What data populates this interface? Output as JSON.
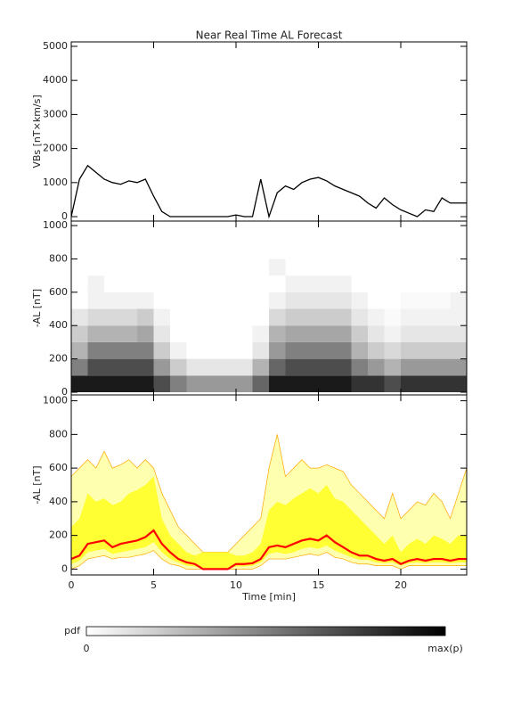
{
  "chart_data": [
    {
      "type": "line",
      "title": "Near Real Time AL Forecast",
      "ylabel": "VBs [nT×km/s]",
      "x": [
        0,
        0.5,
        1,
        1.5,
        2,
        2.5,
        3,
        3.5,
        4,
        4.5,
        5,
        5.5,
        6,
        6.5,
        7,
        7.5,
        8,
        8.5,
        9,
        9.5,
        10,
        10.5,
        11,
        11.5,
        12,
        12.5,
        13,
        13.5,
        14,
        14.5,
        15,
        15.5,
        16,
        16.5,
        17,
        17.5,
        18,
        18.5,
        19,
        19.5,
        20,
        20.5,
        21,
        21.5,
        22,
        22.5,
        23,
        23.5,
        24
      ],
      "values": [
        0,
        1100,
        1500,
        1300,
        1100,
        1000,
        950,
        1050,
        1000,
        1100,
        600,
        150,
        0,
        0,
        0,
        0,
        0,
        0,
        0,
        0,
        50,
        0,
        0,
        1100,
        0,
        700,
        900,
        800,
        1000,
        1100,
        1150,
        1050,
        900,
        800,
        700,
        600,
        400,
        250,
        550,
        350,
        200,
        100,
        0,
        200,
        150,
        550,
        400,
        400,
        400
      ],
      "color": "#000000",
      "xlim": [
        0,
        24
      ],
      "xticks": [
        0,
        5,
        10,
        15,
        20
      ],
      "xtick_labels": false,
      "ylim": [
        -130,
        5130
      ],
      "yticks": [
        0,
        1000,
        2000,
        3000,
        4000,
        5000
      ]
    },
    {
      "type": "heatmap",
      "ylabel": "-AL [nT]",
      "x_bins": [
        0,
        1,
        2,
        3,
        4,
        5,
        6,
        7,
        8,
        9,
        10,
        11,
        12,
        13,
        14,
        15,
        16,
        17,
        18,
        19,
        20,
        21,
        22,
        23,
        24
      ],
      "y_bins": [
        0,
        100,
        200,
        300,
        400,
        500,
        600,
        700,
        800
      ],
      "values": [
        [
          0.9,
          0.5,
          0.3,
          0.2,
          0.1,
          0,
          0,
          0
        ],
        [
          0.9,
          0.7,
          0.5,
          0.3,
          0.15,
          0.05,
          0.05,
          0
        ],
        [
          0.9,
          0.7,
          0.5,
          0.3,
          0.15,
          0.05,
          0,
          0
        ],
        [
          0.9,
          0.7,
          0.5,
          0.3,
          0.15,
          0.05,
          0,
          0
        ],
        [
          0.9,
          0.7,
          0.5,
          0.35,
          0.2,
          0.05,
          0,
          0
        ],
        [
          0.7,
          0.4,
          0.2,
          0.1,
          0.05,
          0,
          0,
          0
        ],
        [
          0.5,
          0.2,
          0.05,
          0,
          0,
          0,
          0,
          0
        ],
        [
          0.4,
          0.1,
          0,
          0,
          0,
          0,
          0,
          0
        ],
        [
          0.4,
          0.1,
          0,
          0,
          0,
          0,
          0,
          0
        ],
        [
          0.4,
          0.1,
          0,
          0,
          0,
          0,
          0,
          0
        ],
        [
          0.4,
          0.1,
          0,
          0,
          0,
          0,
          0,
          0
        ],
        [
          0.6,
          0.3,
          0.1,
          0.05,
          0,
          0,
          0,
          0
        ],
        [
          0.9,
          0.6,
          0.4,
          0.3,
          0.15,
          0.05,
          0,
          0.05
        ],
        [
          0.9,
          0.7,
          0.5,
          0.35,
          0.2,
          0.1,
          0.05,
          0
        ],
        [
          0.9,
          0.7,
          0.5,
          0.35,
          0.2,
          0.1,
          0.05,
          0
        ],
        [
          0.9,
          0.7,
          0.5,
          0.35,
          0.2,
          0.1,
          0.05,
          0
        ],
        [
          0.9,
          0.7,
          0.5,
          0.35,
          0.2,
          0.1,
          0.05,
          0
        ],
        [
          0.8,
          0.5,
          0.3,
          0.2,
          0.1,
          0.05,
          0,
          0
        ],
        [
          0.8,
          0.4,
          0.2,
          0.1,
          0.05,
          0,
          0,
          0
        ],
        [
          0.7,
          0.3,
          0.15,
          0.05,
          0.02,
          0,
          0,
          0
        ],
        [
          0.8,
          0.4,
          0.2,
          0.1,
          0.05,
          0.02,
          0,
          0
        ],
        [
          0.8,
          0.4,
          0.2,
          0.1,
          0.05,
          0.02,
          0,
          0
        ],
        [
          0.8,
          0.4,
          0.2,
          0.1,
          0.05,
          0.02,
          0,
          0
        ],
        [
          0.8,
          0.4,
          0.2,
          0.1,
          0.05,
          0.05,
          0,
          0
        ]
      ],
      "colormap": [
        "#ffffff",
        "#000000"
      ],
      "colorbar_label": "pdf",
      "colorbar_min_label": "0",
      "colorbar_max_label": "max(p)",
      "xlim": [
        0,
        24
      ],
      "xticks": [
        0,
        5,
        10,
        15,
        20
      ],
      "xtick_labels": false,
      "ylim": [
        -16,
        1027
      ],
      "yticks": [
        0,
        200,
        400,
        600,
        800,
        1000
      ]
    },
    {
      "type": "band",
      "ylabel": "-AL [nT]",
      "xlabel": "Time [min]",
      "x": [
        0,
        0.5,
        1,
        1.5,
        2,
        2.5,
        3,
        3.5,
        4,
        4.5,
        5,
        5.5,
        6,
        6.5,
        7,
        7.5,
        8,
        8.5,
        9,
        9.5,
        10,
        10.5,
        11,
        11.5,
        12,
        12.5,
        13,
        13.5,
        14,
        14.5,
        15,
        15.5,
        16,
        16.5,
        17,
        17.5,
        18,
        18.5,
        19,
        19.5,
        20,
        20.5,
        21,
        21.5,
        22,
        22.5,
        23,
        23.5,
        24
      ],
      "median": [
        60,
        80,
        150,
        160,
        170,
        130,
        150,
        160,
        170,
        190,
        230,
        150,
        100,
        60,
        40,
        30,
        0,
        0,
        0,
        0,
        30,
        30,
        35,
        60,
        130,
        140,
        130,
        150,
        170,
        180,
        170,
        200,
        160,
        130,
        100,
        80,
        80,
        60,
        50,
        60,
        30,
        50,
        60,
        50,
        60,
        60,
        50,
        60,
        60
      ],
      "inner_low": [
        30,
        50,
        100,
        110,
        120,
        90,
        100,
        110,
        120,
        130,
        160,
        100,
        60,
        40,
        20,
        15,
        0,
        0,
        0,
        0,
        15,
        15,
        20,
        40,
        90,
        100,
        90,
        100,
        120,
        130,
        120,
        140,
        110,
        90,
        70,
        55,
        55,
        40,
        35,
        40,
        20,
        35,
        40,
        35,
        40,
        40,
        35,
        40,
        40
      ],
      "inner_high": [
        250,
        300,
        450,
        400,
        420,
        380,
        400,
        450,
        470,
        500,
        550,
        300,
        200,
        150,
        100,
        80,
        100,
        100,
        100,
        100,
        80,
        80,
        100,
        150,
        350,
        400,
        380,
        420,
        450,
        480,
        450,
        500,
        420,
        400,
        350,
        300,
        250,
        200,
        150,
        200,
        100,
        150,
        180,
        150,
        200,
        180,
        150,
        200,
        200
      ],
      "outer_low": [
        0,
        20,
        60,
        70,
        80,
        60,
        70,
        70,
        80,
        90,
        110,
        60,
        30,
        20,
        0,
        0,
        0,
        0,
        0,
        0,
        0,
        0,
        0,
        20,
        60,
        60,
        60,
        70,
        80,
        90,
        80,
        100,
        70,
        60,
        40,
        30,
        30,
        20,
        20,
        20,
        0,
        20,
        20,
        20,
        20,
        20,
        20,
        20,
        20
      ],
      "outer_high": [
        550,
        600,
        650,
        600,
        700,
        600,
        620,
        650,
        600,
        650,
        600,
        450,
        350,
        250,
        200,
        150,
        100,
        100,
        100,
        100,
        150,
        200,
        250,
        300,
        600,
        800,
        550,
        600,
        650,
        600,
        600,
        620,
        600,
        580,
        500,
        450,
        400,
        350,
        300,
        450,
        300,
        350,
        400,
        380,
        450,
        400,
        300,
        450,
        600
      ],
      "median_color": "#ff0000",
      "inner_color": "#ffff33",
      "outer_color": "#ffffb0",
      "outer_edge_color": "#ffa500",
      "xlim": [
        0,
        24
      ],
      "xticks": [
        0,
        5,
        10,
        15,
        20
      ],
      "xtick_labels": true,
      "ylim": [
        -35,
        1035
      ],
      "yticks": [
        0,
        200,
        400,
        600,
        800,
        1000
      ]
    }
  ]
}
